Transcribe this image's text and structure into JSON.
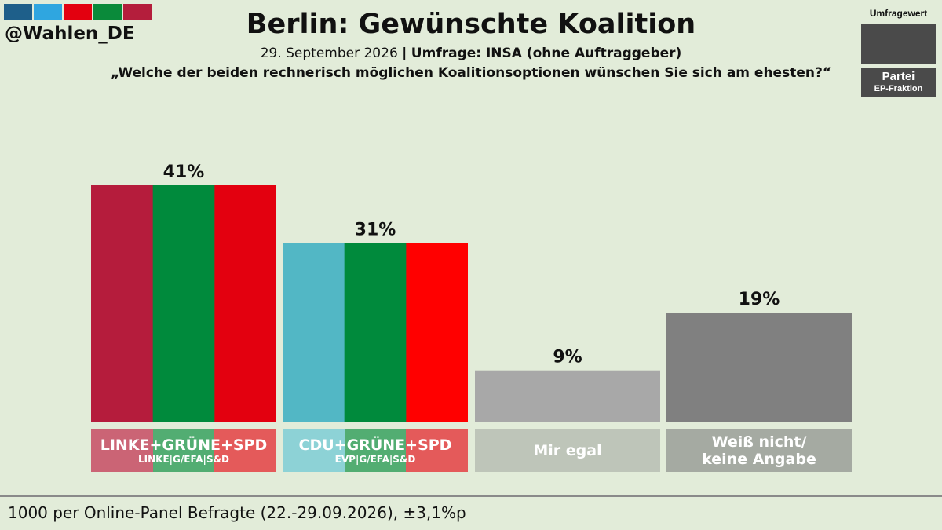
{
  "header": {
    "handle": "@Wahlen_DE",
    "logo_colors": [
      "#1e5f8a",
      "#2fa6e0",
      "#e3000f",
      "#0a8a3a",
      "#b41e3c"
    ],
    "title": "Berlin: Gewünschte Koalition",
    "date": "29. September 2026",
    "separator": "|",
    "pollster": "Umfrage: INSA (ohne Auftraggeber)",
    "question": "„Welche der beiden rechnerisch möglichen Koalitionsoptionen wünschen Sie sich am ehesten?“"
  },
  "legend": {
    "value_label": "Umfragewert",
    "party_label": "Partei",
    "group_label": "EP-Fraktion"
  },
  "footer": {
    "text": "1000 per Online-Panel Befragte (22.-29.09.2026), ±3,1%p"
  },
  "chart_data": {
    "type": "bar",
    "ylim": [
      0,
      41
    ],
    "unit": "%",
    "categories": [
      "LINKE+GRÜNE+SPD",
      "CDU+GRÜNE+SPD",
      "Mir egal",
      "Weiß nicht/ keine Angabe"
    ],
    "values": [
      41,
      31,
      9,
      19
    ],
    "value_labels": [
      "41%",
      "31%",
      "9%",
      "19%"
    ],
    "bars": [
      {
        "label": "LINKE+GRÜNE+SPD",
        "sublabel": "LINKE|G/EFA|S&D",
        "value": 41,
        "value_label": "41%",
        "colors": [
          "#b51c3c",
          "#008a3c",
          "#e3000f"
        ],
        "label_colors": [
          "#cb6475",
          "#52ad72",
          "#e45a5a"
        ]
      },
      {
        "label": "CDU+GRÜNE+SPD",
        "sublabel": "EVP|G/EFA|S&D",
        "value": 31,
        "value_label": "31%",
        "colors": [
          "#52b7c5",
          "#008a3c",
          "#ff0000"
        ],
        "label_colors": [
          "#8dd2d6",
          "#52ad72",
          "#e45a5a"
        ]
      },
      {
        "label": "Mir egal",
        "sublabel": "",
        "value": 9,
        "value_label": "9%",
        "colors": [
          "#a8a8a8"
        ],
        "label_colors": [
          "#bec5b9"
        ]
      },
      {
        "label": "Weiß nicht/\nkeine Angabe",
        "sublabel": "",
        "value": 19,
        "value_label": "19%",
        "colors": [
          "#808080"
        ],
        "label_colors": [
          "#a5aaa2"
        ]
      }
    ]
  }
}
